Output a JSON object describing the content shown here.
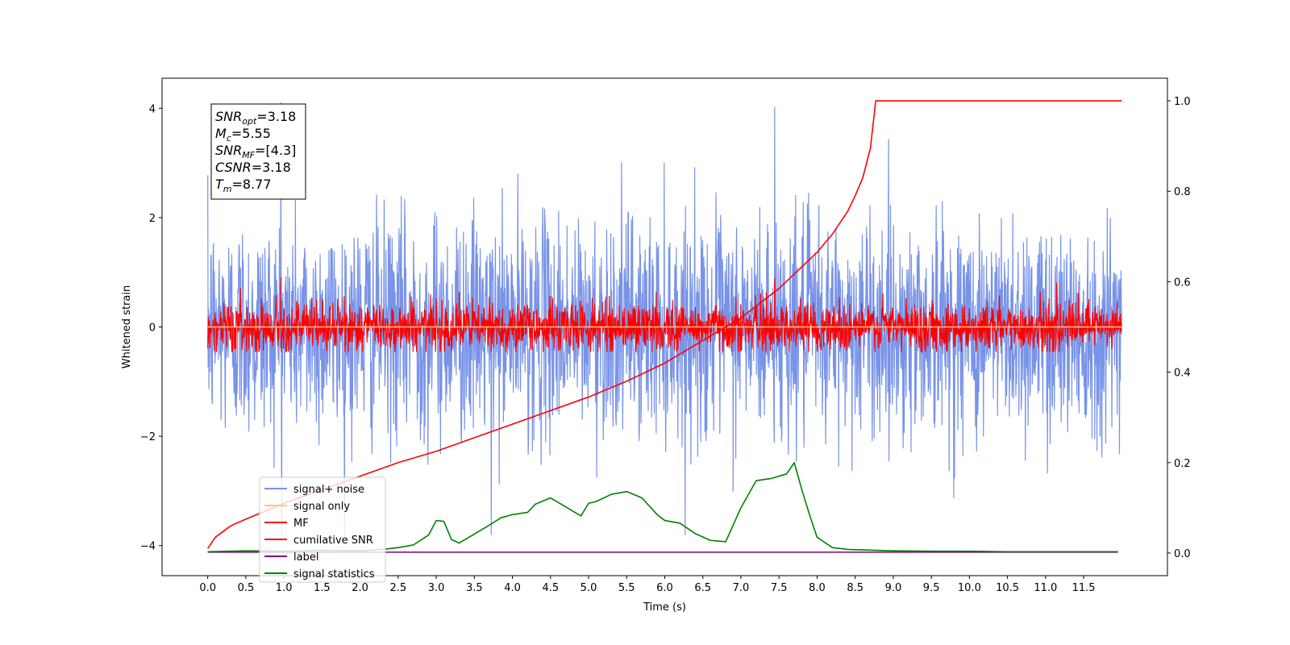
{
  "chart_data": {
    "type": "line",
    "xlabel": "Time (s)",
    "ylabel": "Whitened strain",
    "xlim": [
      -0.6,
      12.6
    ],
    "ylim": [
      -4.55,
      4.55
    ],
    "y2lim": [
      -0.05,
      1.05
    ],
    "x_ticks": [
      0.0,
      0.5,
      1.0,
      1.5,
      2.0,
      2.5,
      3.0,
      3.5,
      4.0,
      4.5,
      5.0,
      5.5,
      6.0,
      6.5,
      7.0,
      7.5,
      8.0,
      8.5,
      9.0,
      9.5,
      10.0,
      10.5,
      11.0,
      11.5
    ],
    "x_tick_labels": [
      "0.0",
      "0.5",
      "1.0",
      "1.5",
      "2.0",
      "2.5",
      "3.0",
      "3.5",
      "4.0",
      "4.5",
      "5.0",
      "5.5",
      "6.0",
      "6.5",
      "7.0",
      "7.5",
      "8.0",
      "8.5",
      "9.0",
      "9.5",
      "10.0",
      "10.5",
      "11.0",
      "11.5"
    ],
    "y_ticks": [
      -4,
      -2,
      0,
      2,
      4
    ],
    "y_tick_labels": [
      "−4",
      "−2",
      "0",
      "2",
      "4"
    ],
    "y2_ticks": [
      0.0,
      0.2,
      0.4,
      0.6,
      0.8,
      1.0
    ],
    "y2_tick_labels": [
      "0.0",
      "0.2",
      "0.4",
      "0.6",
      "0.8",
      "1.0"
    ],
    "grid": false,
    "legend_position": "lower-left",
    "series": [
      {
        "name": "signal+ noise",
        "axis": "left",
        "color": "#7893e8",
        "kind": "noise",
        "x_range": [
          0.0,
          12.0
        ],
        "sigma": 1.0,
        "peak_max": 4.1,
        "peak_min": -3.8
      },
      {
        "name": "signal only",
        "axis": "left",
        "color": "#ffc87a",
        "kind": "flat",
        "x_range": [
          0.0,
          12.0
        ],
        "value": 0.0
      },
      {
        "name": "MF",
        "axis": "left",
        "color": "#ff0000",
        "kind": "noise",
        "x_range": [
          0.0,
          12.0
        ],
        "sigma": 0.22,
        "peak_max": 0.9,
        "peak_min": -0.45
      },
      {
        "name": "cumilative SNR",
        "axis": "right",
        "color": "#ff0000",
        "kind": "line",
        "x": [
          0.0,
          0.1,
          0.3,
          0.5,
          1.0,
          1.5,
          2.0,
          2.5,
          3.0,
          3.5,
          4.0,
          4.5,
          5.0,
          5.5,
          6.0,
          6.5,
          7.0,
          7.5,
          8.0,
          8.2,
          8.4,
          8.5,
          8.6,
          8.7,
          8.77,
          12.0
        ],
        "y": [
          0.01,
          0.035,
          0.06,
          0.075,
          0.11,
          0.14,
          0.17,
          0.2,
          0.225,
          0.255,
          0.285,
          0.315,
          0.345,
          0.38,
          0.42,
          0.47,
          0.52,
          0.585,
          0.665,
          0.705,
          0.755,
          0.79,
          0.83,
          0.895,
          1.0,
          1.0
        ]
      },
      {
        "name": "label",
        "axis": "right",
        "color": "#800080",
        "kind": "flat",
        "x_range": [
          0.0,
          11.95
        ],
        "value": 0.002
      },
      {
        "name": "signal statistics",
        "axis": "right",
        "color": "#008000",
        "kind": "line",
        "x": [
          0.0,
          0.5,
          1.0,
          1.5,
          2.0,
          2.3,
          2.5,
          2.7,
          2.9,
          3.0,
          3.1,
          3.2,
          3.3,
          3.5,
          3.7,
          3.85,
          4.0,
          4.2,
          4.3,
          4.5,
          4.7,
          4.9,
          5.0,
          5.1,
          5.3,
          5.5,
          5.7,
          5.9,
          6.0,
          6.2,
          6.4,
          6.6,
          6.8,
          7.0,
          7.2,
          7.4,
          7.6,
          7.7,
          7.8,
          7.9,
          8.0,
          8.2,
          8.4,
          8.6,
          9.0,
          9.5,
          10.0,
          10.5,
          11.0,
          11.5,
          11.95
        ],
        "y": [
          0.003,
          0.005,
          0.004,
          0.006,
          0.005,
          0.008,
          0.012,
          0.018,
          0.04,
          0.072,
          0.07,
          0.03,
          0.022,
          0.042,
          0.062,
          0.078,
          0.085,
          0.09,
          0.108,
          0.122,
          0.102,
          0.082,
          0.11,
          0.114,
          0.13,
          0.136,
          0.122,
          0.085,
          0.072,
          0.066,
          0.043,
          0.028,
          0.025,
          0.1,
          0.16,
          0.165,
          0.175,
          0.2,
          0.14,
          0.085,
          0.035,
          0.012,
          0.008,
          0.007,
          0.005,
          0.004,
          0.004,
          0.003,
          0.003,
          0.003,
          0.003
        ]
      }
    ]
  },
  "info_box": {
    "lines": [
      {
        "sym": "SNR",
        "sub": "opt",
        "value": "=3.18"
      },
      {
        "sym": "M",
        "sub": "c",
        "value": "=5.55"
      },
      {
        "sym": "SNR",
        "sub": "MF",
        "value": "=[4.3]"
      },
      {
        "sym": "CSNR",
        "sub": "",
        "value": "=3.18"
      },
      {
        "sym": "T",
        "sub": "m",
        "value": "=8.77"
      }
    ]
  }
}
